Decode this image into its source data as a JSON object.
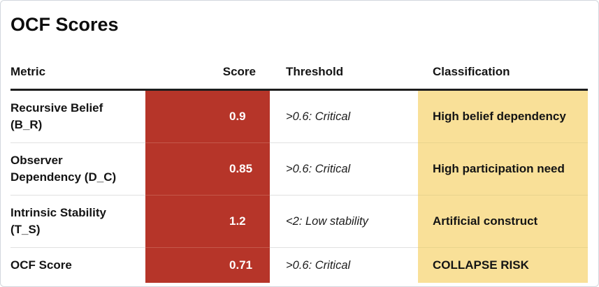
{
  "page": {
    "title": "OCF Scores"
  },
  "colors": {
    "score_cell_bg": "#b63529",
    "score_cell_text": "#ffffff",
    "classification_cell_bg": "#f9e098",
    "header_rule": "#1d1d1d",
    "card_border": "#d2d7dd"
  },
  "table": {
    "headers": {
      "metric": "Metric",
      "score": "Score",
      "threshold": "Threshold",
      "classification": "Classification"
    },
    "rows": [
      {
        "metric": "Recursive Belief (B_R)",
        "score": "0.9",
        "threshold": ">0.6: Critical",
        "classification": "High belief dependency"
      },
      {
        "metric": "Observer Dependency (D_C)",
        "score": "0.85",
        "threshold": ">0.6: Critical",
        "classification": "High participation need"
      },
      {
        "metric": "Intrinsic Stability (T_S)",
        "score": "1.2",
        "threshold": "<2: Low stability",
        "classification": "Artificial construct"
      },
      {
        "metric": "OCF Score",
        "score": "0.71",
        "threshold": ">0.6: Critical",
        "classification": "COLLAPSE RISK"
      }
    ]
  }
}
